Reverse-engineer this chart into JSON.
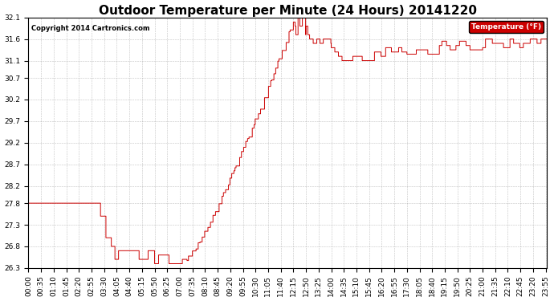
{
  "title": "Outdoor Temperature per Minute (24 Hours) 20141220",
  "copyright": "Copyright 2014 Cartronics.com",
  "legend_label": "Temperature (°F)",
  "line_color": "#cc0000",
  "background_color": "#ffffff",
  "grid_color": "#999999",
  "ylim": [
    26.3,
    32.1
  ],
  "yticks": [
    26.3,
    26.8,
    27.3,
    27.8,
    28.2,
    28.7,
    29.2,
    29.7,
    30.2,
    30.7,
    31.1,
    31.6,
    32.1
  ],
  "xtick_interval": 35,
  "num_minutes": 1440,
  "title_fontsize": 11,
  "tick_fontsize": 6.5,
  "legend_bg": "#cc0000",
  "legend_text_color": "#ffffff",
  "figwidth": 6.9,
  "figheight": 3.75,
  "dpi": 100
}
